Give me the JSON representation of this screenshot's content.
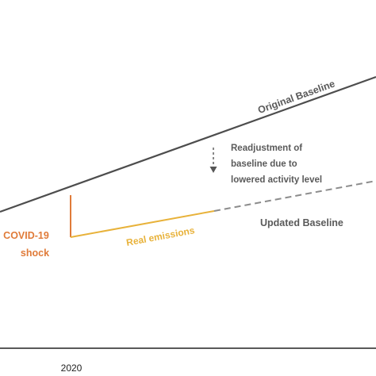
{
  "diagram": {
    "original_baseline_label": "Original Baseline",
    "updated_baseline_label": "Updated Baseline",
    "real_emissions_label": "Real emissions",
    "shock_label_line1": "COVID-19",
    "shock_label_line2": "shock",
    "readjustment_line1": "Readjustment of",
    "readjustment_line2": "baseline due to",
    "readjustment_line3": "lowered activity level",
    "x_tick_2020": "2020"
  },
  "colors": {
    "baseline_line": "#4d4d4d",
    "baseline_text": "#5a5a5a",
    "shock": "#e07b39",
    "real_emissions": "#e8b23a",
    "updated_dashed": "#8c8c8c",
    "axis": "#222222"
  }
}
